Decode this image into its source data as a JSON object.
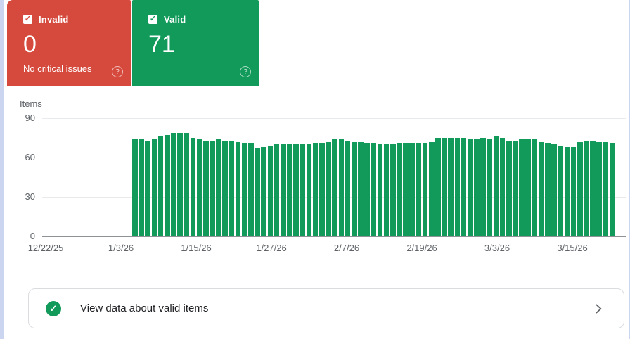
{
  "page": {
    "left_strip_color": "#ccd5f0",
    "background": "#ffffff"
  },
  "icons": {
    "check": "✓",
    "help": "?"
  },
  "summary_cards": [
    {
      "id": "invalid",
      "label": "Invalid",
      "checkbox_checked": true,
      "value": "0",
      "subtitle": "No critical issues",
      "color": "#d6493d"
    },
    {
      "id": "valid",
      "label": "Valid",
      "checkbox_checked": true,
      "value": "71",
      "color": "#129a5a"
    }
  ],
  "chart_data": {
    "type": "bar",
    "title": "Items",
    "ylabel": "Items",
    "ylim": [
      0,
      90
    ],
    "yticks": [
      90,
      60,
      30,
      0
    ],
    "grid": true,
    "grid_color": "#e8eaed",
    "axis_color": "#8d9297",
    "xticklabels": [
      "12/22/25",
      "1/3/26",
      "1/15/26",
      "1/27/26",
      "2/7/26",
      "2/19/26",
      "3/3/26",
      "3/15/26"
    ],
    "dates": [
      "1/4/26",
      "1/5/26",
      "1/6/26",
      "1/7/26",
      "1/8/26",
      "1/9/26",
      "1/10/26",
      "1/11/26",
      "1/12/26",
      "1/13/26",
      "1/14/26",
      "1/15/26",
      "1/16/26",
      "1/17/26",
      "1/18/26",
      "1/19/26",
      "1/20/26",
      "1/21/26",
      "1/22/26",
      "1/23/26",
      "1/24/26",
      "1/25/26",
      "1/26/26",
      "1/27/26",
      "1/28/26",
      "1/29/26",
      "1/30/26",
      "1/31/26",
      "2/1/26",
      "2/2/26",
      "2/3/26",
      "2/4/26",
      "2/5/26",
      "2/6/26",
      "2/7/26",
      "2/8/26",
      "2/9/26",
      "2/10/26",
      "2/11/26",
      "2/12/26",
      "2/13/26",
      "2/14/26",
      "2/15/26",
      "2/16/26",
      "2/17/26",
      "2/18/26",
      "2/19/26",
      "2/20/26",
      "2/21/26",
      "2/22/26",
      "2/23/26",
      "2/24/26",
      "2/25/26",
      "2/26/26",
      "2/27/26",
      "2/28/26",
      "3/1/26",
      "3/2/26",
      "3/3/26",
      "3/4/26",
      "3/5/26",
      "3/6/26",
      "3/7/26",
      "3/8/26",
      "3/9/26",
      "3/10/26",
      "3/11/26",
      "3/12/26",
      "3/13/26",
      "3/14/26",
      "3/15/26",
      "3/16/26",
      "3/17/26",
      "3/18/26",
      "3/19/26"
    ],
    "series": [
      {
        "name": "Valid",
        "color": "#129a5a",
        "values": [
          74,
          74,
          73,
          74,
          76,
          77,
          79,
          79,
          79,
          75,
          74,
          73,
          73,
          74,
          73,
          73,
          72,
          71,
          71,
          67,
          68,
          69,
          70,
          70,
          70,
          70,
          70,
          70,
          71,
          71,
          72,
          74,
          74,
          73,
          72,
          72,
          71,
          71,
          70,
          70,
          70,
          71,
          71,
          71,
          71,
          71,
          72,
          75,
          75,
          75,
          75,
          75,
          74,
          74,
          75,
          74,
          76,
          75,
          73,
          73,
          74,
          74,
          74,
          72,
          71,
          70,
          69,
          68,
          68,
          72,
          73,
          73,
          72,
          72,
          71
        ]
      }
    ],
    "legend": false
  },
  "footer": {
    "text": "View data about valid items",
    "icon_color": "#129a5a"
  }
}
